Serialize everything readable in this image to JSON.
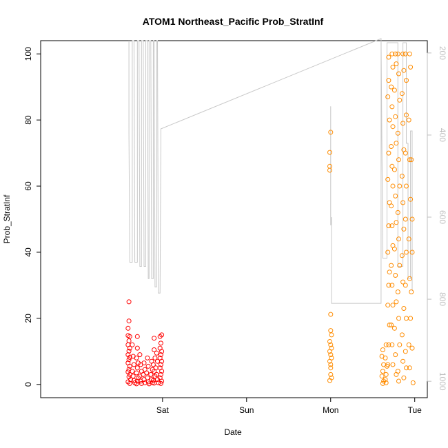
{
  "chart_data": {
    "type": "scatter",
    "title": "ATOM1 Northeast_Pacific Prob_StratInf",
    "xlabel": "Date",
    "ylabel": "Prob_StratInf",
    "x_unit": "days",
    "xlim": [
      -1.45,
      3.15
    ],
    "ylim": [
      -4,
      104
    ],
    "x_ticks": [
      {
        "value": 0,
        "label": "Sat"
      },
      {
        "value": 1,
        "label": "Sun"
      },
      {
        "value": 2,
        "label": "Mon"
      },
      {
        "value": 3,
        "label": "Tue"
      }
    ],
    "y_ticks": [
      0,
      20,
      40,
      60,
      80,
      100
    ],
    "y2_ticks": [
      200,
      400,
      600,
      800,
      1000
    ],
    "y2_range": [
      1040,
      170
    ],
    "colors": {
      "series1": "#ff0000",
      "series2": "#ff8c00",
      "y2_line": "#c8c8c8",
      "y2_axis": "#bfbfbf"
    },
    "series": [
      {
        "color": "#ff0000",
        "points": [
          [
            -0.4,
            25.0
          ],
          [
            -0.4,
            19.2
          ],
          [
            -0.41,
            17.0
          ],
          [
            -0.41,
            14.8
          ],
          [
            -0.39,
            14.5
          ],
          [
            -0.4,
            13.2
          ],
          [
            -0.41,
            12.0
          ],
          [
            -0.39,
            11.0
          ],
          [
            -0.4,
            10.1
          ],
          [
            -0.41,
            9.0
          ],
          [
            -0.39,
            8.2
          ],
          [
            -0.4,
            7.5
          ],
          [
            -0.41,
            6.5
          ],
          [
            -0.39,
            5.5
          ],
          [
            -0.4,
            4.6
          ],
          [
            -0.41,
            3.8
          ],
          [
            -0.39,
            3.0
          ],
          [
            -0.4,
            2.3
          ],
          [
            -0.38,
            1.5
          ],
          [
            -0.41,
            0.8
          ],
          [
            -0.39,
            0.3
          ],
          [
            -0.36,
            12.0
          ],
          [
            -0.35,
            8.5
          ],
          [
            -0.34,
            6.0
          ],
          [
            -0.36,
            4.0
          ],
          [
            -0.35,
            2.5
          ],
          [
            -0.34,
            1.2
          ],
          [
            -0.33,
            0.5
          ],
          [
            -0.3,
            14.5
          ],
          [
            -0.3,
            11.0
          ],
          [
            -0.31,
            8.0
          ],
          [
            -0.29,
            6.5
          ],
          [
            -0.3,
            5.0
          ],
          [
            -0.31,
            3.5
          ],
          [
            -0.29,
            2.0
          ],
          [
            -0.3,
            1.0
          ],
          [
            -0.31,
            0.2
          ],
          [
            -0.27,
            9.0
          ],
          [
            -0.26,
            6.0
          ],
          [
            -0.25,
            4.0
          ],
          [
            -0.27,
            2.5
          ],
          [
            -0.26,
            1.0
          ],
          [
            -0.25,
            0.3
          ],
          [
            -0.22,
            6.5
          ],
          [
            -0.21,
            4.5
          ],
          [
            -0.23,
            3.0
          ],
          [
            -0.22,
            1.5
          ],
          [
            -0.21,
            0.5
          ],
          [
            -0.18,
            8.0
          ],
          [
            -0.17,
            5.5
          ],
          [
            -0.19,
            3.5
          ],
          [
            -0.18,
            2.0
          ],
          [
            -0.17,
            0.8
          ],
          [
            -0.16,
            0.2
          ],
          [
            -0.13,
            7.0
          ],
          [
            -0.12,
            4.5
          ],
          [
            -0.14,
            3.0
          ],
          [
            -0.13,
            1.5
          ],
          [
            -0.12,
            0.5
          ],
          [
            -0.1,
            14.0
          ],
          [
            -0.1,
            10.5
          ],
          [
            -0.09,
            8.0
          ],
          [
            -0.11,
            6.0
          ],
          [
            -0.1,
            4.0
          ],
          [
            -0.09,
            2.5
          ],
          [
            -0.11,
            1.2
          ],
          [
            -0.1,
            0.4
          ],
          [
            -0.07,
            9.5
          ],
          [
            -0.06,
            7.0
          ],
          [
            -0.08,
            5.0
          ],
          [
            -0.07,
            3.0
          ],
          [
            -0.06,
            1.5
          ],
          [
            -0.05,
            0.5
          ],
          [
            -0.03,
            14.5
          ],
          [
            -0.02,
            12.5
          ],
          [
            -0.03,
            11.0
          ],
          [
            -0.01,
            10.0
          ],
          [
            -0.02,
            9.0
          ],
          [
            -0.03,
            8.0
          ],
          [
            -0.01,
            7.0
          ],
          [
            -0.02,
            6.0
          ],
          [
            -0.03,
            5.0
          ],
          [
            -0.01,
            4.0
          ],
          [
            -0.02,
            3.0
          ],
          [
            -0.03,
            2.0
          ],
          [
            -0.01,
            1.0
          ],
          [
            -0.02,
            0.3
          ],
          [
            -0.01,
            15.0
          ]
        ]
      },
      {
        "color": "#ff8c00",
        "points": [
          [
            2.0,
            76.3
          ],
          [
            1.99,
            70.2
          ],
          [
            1.99,
            66.0
          ],
          [
            1.99,
            64.8
          ],
          [
            2.0,
            21.2
          ],
          [
            2.0,
            16.3
          ],
          [
            2.01,
            15.0
          ],
          [
            1.99,
            13.0
          ],
          [
            2.0,
            12.0
          ],
          [
            2.01,
            11.0
          ],
          [
            1.99,
            10.0
          ],
          [
            2.0,
            9.0
          ],
          [
            2.01,
            8.0
          ],
          [
            1.99,
            7.0
          ],
          [
            2.0,
            6.0
          ],
          [
            2.0,
            5.0
          ],
          [
            2.0,
            3.0
          ],
          [
            2.01,
            2.0
          ],
          [
            1.99,
            1.2
          ],
          [
            2.62,
            10.5
          ],
          [
            2.61,
            8.5
          ],
          [
            2.63,
            6.0
          ],
          [
            2.62,
            4.0
          ],
          [
            2.61,
            2.5
          ],
          [
            2.63,
            1.0
          ],
          [
            2.62,
            0.3
          ],
          [
            2.66,
            12.0
          ],
          [
            2.65,
            8.0
          ],
          [
            2.67,
            5.5
          ],
          [
            2.66,
            3.0
          ],
          [
            2.65,
            1.5
          ],
          [
            2.66,
            0.5
          ],
          [
            2.69,
            99.0
          ],
          [
            2.69,
            92.0
          ],
          [
            2.68,
            87.0
          ],
          [
            2.7,
            80.0
          ],
          [
            2.69,
            70.0
          ],
          [
            2.68,
            62.0
          ],
          [
            2.7,
            55.0
          ],
          [
            2.69,
            48.0
          ],
          [
            2.68,
            40.0
          ],
          [
            2.7,
            34.0
          ],
          [
            2.69,
            30.0
          ],
          [
            2.68,
            24.0
          ],
          [
            2.7,
            18.0
          ],
          [
            2.69,
            12.0
          ],
          [
            2.68,
            6.0
          ],
          [
            2.73,
            100.0
          ],
          [
            2.74,
            96.0
          ],
          [
            2.72,
            90.0
          ],
          [
            2.73,
            84.0
          ],
          [
            2.74,
            78.0
          ],
          [
            2.72,
            72.0
          ],
          [
            2.73,
            66.0
          ],
          [
            2.74,
            60.0
          ],
          [
            2.72,
            54.0
          ],
          [
            2.73,
            48.0
          ],
          [
            2.74,
            42.0
          ],
          [
            2.72,
            36.0
          ],
          [
            2.73,
            30.0
          ],
          [
            2.74,
            24.0
          ],
          [
            2.72,
            18.0
          ],
          [
            2.73,
            12.0
          ],
          [
            2.74,
            6.0
          ],
          [
            2.77,
            100.0
          ],
          [
            2.78,
            97.0
          ],
          [
            2.76,
            89.0
          ],
          [
            2.77,
            81.0
          ],
          [
            2.78,
            73.0
          ],
          [
            2.76,
            65.0
          ],
          [
            2.77,
            57.0
          ],
          [
            2.78,
            49.0
          ],
          [
            2.76,
            41.0
          ],
          [
            2.77,
            33.0
          ],
          [
            2.78,
            25.0
          ],
          [
            2.76,
            17.0
          ],
          [
            2.77,
            9.0
          ],
          [
            2.78,
            3.0
          ],
          [
            2.8,
            100.0
          ],
          [
            2.81,
            94.0
          ],
          [
            2.82,
            86.0
          ],
          [
            2.8,
            76.0
          ],
          [
            2.81,
            68.0
          ],
          [
            2.82,
            60.0
          ],
          [
            2.8,
            52.0
          ],
          [
            2.81,
            44.0
          ],
          [
            2.82,
            36.0
          ],
          [
            2.8,
            28.0
          ],
          [
            2.81,
            20.0
          ],
          [
            2.82,
            12.0
          ],
          [
            2.8,
            4.0
          ],
          [
            2.81,
            1.0
          ],
          [
            2.86,
            100.0
          ],
          [
            2.87,
            95.0
          ],
          [
            2.85,
            88.0
          ],
          [
            2.86,
            79.0
          ],
          [
            2.87,
            71.0
          ],
          [
            2.85,
            63.0
          ],
          [
            2.86,
            55.0
          ],
          [
            2.87,
            47.0
          ],
          [
            2.85,
            39.0
          ],
          [
            2.86,
            31.0
          ],
          [
            2.87,
            23.0
          ],
          [
            2.85,
            15.0
          ],
          [
            2.86,
            7.0
          ],
          [
            2.87,
            2.0
          ],
          [
            2.89,
            100.0
          ],
          [
            2.9,
            92.0
          ],
          [
            2.9,
            81.5
          ],
          [
            2.89,
            70.0
          ],
          [
            2.9,
            60.0
          ],
          [
            2.89,
            50.0
          ],
          [
            2.9,
            40.0
          ],
          [
            2.89,
            30.0
          ],
          [
            2.9,
            20.0
          ],
          [
            2.89,
            10.0
          ],
          [
            2.9,
            5.0
          ],
          [
            2.94,
            100.0
          ],
          [
            2.95,
            96.0
          ],
          [
            2.93,
            80.0
          ],
          [
            2.94,
            68.0
          ],
          [
            2.95,
            56.0
          ],
          [
            2.93,
            44.0
          ],
          [
            2.94,
            32.0
          ],
          [
            2.95,
            20.0
          ],
          [
            2.93,
            12.0
          ],
          [
            2.94,
            5.0
          ],
          [
            2.96,
            68.0
          ],
          [
            2.97,
            50.0
          ],
          [
            2.97,
            40.0
          ],
          [
            2.96,
            28.0
          ],
          [
            2.97,
            11.0
          ],
          [
            2.98,
            0.5
          ]
        ]
      }
    ],
    "y2_line": [
      [
        -0.4,
        170
      ],
      [
        -0.4,
        400
      ],
      [
        -0.39,
        710
      ],
      [
        -0.36,
        710
      ],
      [
        -0.36,
        170
      ],
      [
        -0.34,
        170
      ],
      [
        -0.33,
        710
      ],
      [
        -0.3,
        710
      ],
      [
        -0.3,
        170
      ],
      [
        -0.28,
        170
      ],
      [
        -0.27,
        720
      ],
      [
        -0.25,
        720
      ],
      [
        -0.25,
        170
      ],
      [
        -0.23,
        170
      ],
      [
        -0.22,
        720
      ],
      [
        -0.2,
        720
      ],
      [
        -0.2,
        170
      ],
      [
        -0.18,
        170
      ],
      [
        -0.17,
        750
      ],
      [
        -0.16,
        750
      ],
      [
        -0.16,
        170
      ],
      [
        -0.14,
        170
      ],
      [
        -0.13,
        750
      ],
      [
        -0.11,
        750
      ],
      [
        -0.11,
        170
      ],
      [
        -0.1,
        170
      ],
      [
        -0.09,
        770
      ],
      [
        -0.07,
        770
      ],
      [
        -0.07,
        170
      ],
      [
        -0.06,
        170
      ],
      [
        -0.05,
        785
      ],
      [
        -0.03,
        785
      ],
      [
        -0.03,
        785
      ],
      [
        -0.02,
        430
      ],
      [
        -0.02,
        385
      ],
      [
        2.6,
        165
      ],
      [
        2.62,
        700
      ],
      [
        2.67,
        700
      ],
      [
        2.67,
        175
      ],
      [
        2.8,
        175
      ],
      [
        2.8,
        720
      ],
      [
        2.86,
        720
      ],
      [
        2.86,
        175
      ],
      [
        2.9,
        175
      ],
      [
        2.9,
        420
      ],
      [
        2.92,
        420
      ],
      [
        2.92,
        750
      ],
      [
        2.95,
        750
      ],
      [
        2.95,
        390
      ],
      [
        2.97,
        390
      ],
      [
        2.97,
        780
      ]
    ],
    "y2_line_segment2": [
      [
        2.0,
        330
      ],
      [
        2.0,
        620
      ],
      [
        2.01,
        600
      ],
      [
        2.01,
        810
      ],
      [
        2.6,
        810
      ],
      [
        2.6,
        175
      ]
    ]
  }
}
